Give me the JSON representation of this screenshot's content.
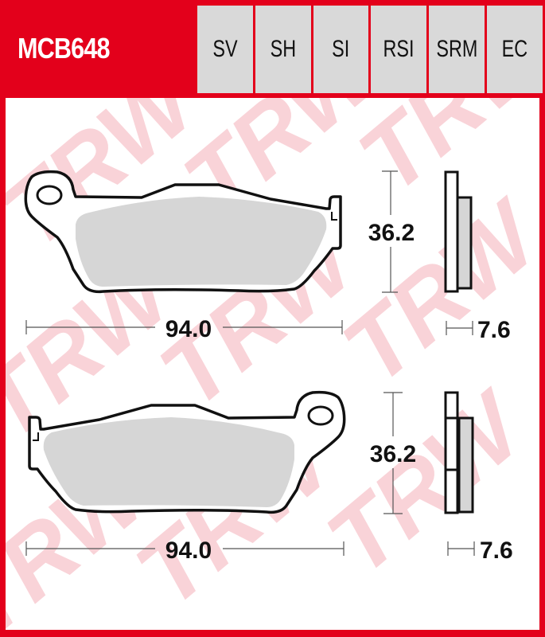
{
  "header": {
    "part_number": "MCB648",
    "compound_codes": [
      "SV",
      "SH",
      "SI",
      "RSI",
      "SRM",
      "EC"
    ]
  },
  "watermark": "TRW",
  "drawings": [
    {
      "name": "top-pad",
      "length": "94.0",
      "height": "36.2",
      "thickness": "7.6"
    },
    {
      "name": "bottom-pad",
      "length": "94.0",
      "height": "36.2",
      "thickness": "7.6"
    }
  ],
  "colors": {
    "brand_red": "#e3001b",
    "header_gray": "#d9d9d9",
    "friction_gray": "#d6d6d6",
    "watermark_pink": "#f9d3d8"
  }
}
